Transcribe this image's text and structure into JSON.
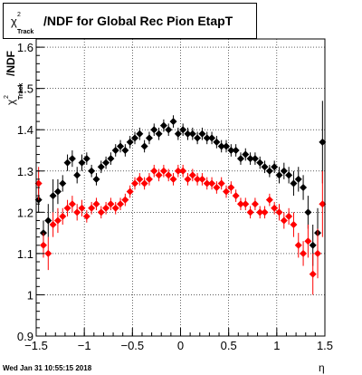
{
  "chart_data": {
    "type": "scatter",
    "title_main": "/NDF for Global Rec Pion EtapT",
    "title_chi": "χ",
    "title_sup": "2",
    "title_sub": "Track",
    "ylabel_main": "/NDF",
    "ylabel_chi": "χ",
    "ylabel_sup": "2",
    "ylabel_sub": "Track",
    "xlabel": "η",
    "footer": "Wed Jan 31 10:55:15 2018",
    "xlim": [
      -1.5,
      1.5
    ],
    "ylim": [
      0.9,
      1.62
    ],
    "xticks": [
      -1.5,
      -1,
      -0.5,
      0,
      0.5,
      1,
      1.5
    ],
    "xtick_labels": [
      "−1.5",
      "−1",
      "−0.5",
      "0",
      "0.5",
      "1",
      "1.5"
    ],
    "yticks": [
      0.9,
      1,
      1.1,
      1.2,
      1.3,
      1.4,
      1.5,
      1.6
    ],
    "ytick_labels": [
      "0.9",
      "1",
      "1.1",
      "1.2",
      "1.3",
      "1.4",
      "1.5",
      "1.6"
    ],
    "grid": true,
    "series": [
      {
        "color": "#000000",
        "marker": "diamond",
        "x": [
          -1.475,
          -1.425,
          -1.375,
          -1.325,
          -1.275,
          -1.225,
          -1.175,
          -1.125,
          -1.075,
          -1.025,
          -0.975,
          -0.925,
          -0.875,
          -0.825,
          -0.775,
          -0.725,
          -0.675,
          -0.625,
          -0.575,
          -0.525,
          -0.475,
          -0.425,
          -0.375,
          -0.325,
          -0.275,
          -0.225,
          -0.175,
          -0.125,
          -0.075,
          -0.025,
          0.025,
          0.075,
          0.125,
          0.175,
          0.225,
          0.275,
          0.325,
          0.375,
          0.425,
          0.475,
          0.525,
          0.575,
          0.625,
          0.675,
          0.725,
          0.775,
          0.825,
          0.875,
          0.925,
          0.975,
          1.025,
          1.075,
          1.125,
          1.175,
          1.225,
          1.275,
          1.325,
          1.375,
          1.425,
          1.475
        ],
        "y": [
          1.23,
          1.15,
          1.18,
          1.24,
          1.25,
          1.27,
          1.32,
          1.33,
          1.29,
          1.32,
          1.33,
          1.3,
          1.28,
          1.31,
          1.32,
          1.33,
          1.35,
          1.36,
          1.35,
          1.37,
          1.38,
          1.39,
          1.36,
          1.38,
          1.4,
          1.39,
          1.41,
          1.4,
          1.42,
          1.39,
          1.4,
          1.39,
          1.39,
          1.38,
          1.39,
          1.38,
          1.38,
          1.37,
          1.36,
          1.36,
          1.35,
          1.35,
          1.33,
          1.34,
          1.33,
          1.33,
          1.32,
          1.31,
          1.3,
          1.31,
          1.29,
          1.3,
          1.29,
          1.27,
          1.28,
          1.26,
          1.2,
          1.12,
          1.15,
          1.37
        ],
        "err": [
          0.03,
          0.03,
          0.04,
          0.04,
          0.03,
          0.02,
          0.02,
          0.02,
          0.02,
          0.02,
          0.015,
          0.015,
          0.015,
          0.015,
          0.015,
          0.015,
          0.015,
          0.015,
          0.015,
          0.015,
          0.015,
          0.015,
          0.015,
          0.015,
          0.015,
          0.015,
          0.015,
          0.015,
          0.015,
          0.015,
          0.015,
          0.015,
          0.015,
          0.015,
          0.015,
          0.015,
          0.015,
          0.015,
          0.015,
          0.015,
          0.015,
          0.015,
          0.015,
          0.015,
          0.015,
          0.015,
          0.015,
          0.015,
          0.015,
          0.015,
          0.02,
          0.02,
          0.02,
          0.03,
          0.03,
          0.03,
          0.04,
          0.05,
          0.06,
          0.1
        ]
      },
      {
        "color": "#ff0000",
        "marker": "diamond",
        "x": [
          -1.475,
          -1.425,
          -1.375,
          -1.325,
          -1.275,
          -1.225,
          -1.175,
          -1.125,
          -1.075,
          -1.025,
          -0.975,
          -0.925,
          -0.875,
          -0.825,
          -0.775,
          -0.725,
          -0.675,
          -0.625,
          -0.575,
          -0.525,
          -0.475,
          -0.425,
          -0.375,
          -0.325,
          -0.275,
          -0.225,
          -0.175,
          -0.125,
          -0.075,
          -0.025,
          0.025,
          0.075,
          0.125,
          0.175,
          0.225,
          0.275,
          0.325,
          0.375,
          0.425,
          0.475,
          0.525,
          0.575,
          0.625,
          0.675,
          0.725,
          0.775,
          0.825,
          0.875,
          0.925,
          0.975,
          1.025,
          1.075,
          1.125,
          1.175,
          1.225,
          1.275,
          1.325,
          1.375,
          1.425,
          1.475
        ],
        "y": [
          1.27,
          1.12,
          1.1,
          1.17,
          1.18,
          1.19,
          1.21,
          1.22,
          1.2,
          1.21,
          1.19,
          1.21,
          1.22,
          1.2,
          1.21,
          1.22,
          1.21,
          1.22,
          1.23,
          1.25,
          1.27,
          1.28,
          1.27,
          1.28,
          1.3,
          1.29,
          1.3,
          1.29,
          1.28,
          1.3,
          1.3,
          1.28,
          1.29,
          1.28,
          1.28,
          1.27,
          1.27,
          1.26,
          1.27,
          1.25,
          1.26,
          1.24,
          1.22,
          1.22,
          1.2,
          1.22,
          1.2,
          1.2,
          1.23,
          1.21,
          1.2,
          1.18,
          1.19,
          1.17,
          1.12,
          1.1,
          1.13,
          1.05,
          1.1,
          1.22
        ],
        "err": [
          0.04,
          0.03,
          0.04,
          0.03,
          0.03,
          0.02,
          0.02,
          0.02,
          0.02,
          0.02,
          0.015,
          0.015,
          0.015,
          0.015,
          0.015,
          0.015,
          0.015,
          0.015,
          0.015,
          0.015,
          0.015,
          0.015,
          0.015,
          0.015,
          0.015,
          0.015,
          0.015,
          0.015,
          0.015,
          0.015,
          0.015,
          0.015,
          0.015,
          0.015,
          0.015,
          0.015,
          0.015,
          0.015,
          0.015,
          0.015,
          0.015,
          0.015,
          0.015,
          0.015,
          0.015,
          0.015,
          0.015,
          0.015,
          0.015,
          0.015,
          0.02,
          0.02,
          0.02,
          0.03,
          0.03,
          0.03,
          0.04,
          0.05,
          0.06,
          0.08
        ]
      }
    ]
  }
}
